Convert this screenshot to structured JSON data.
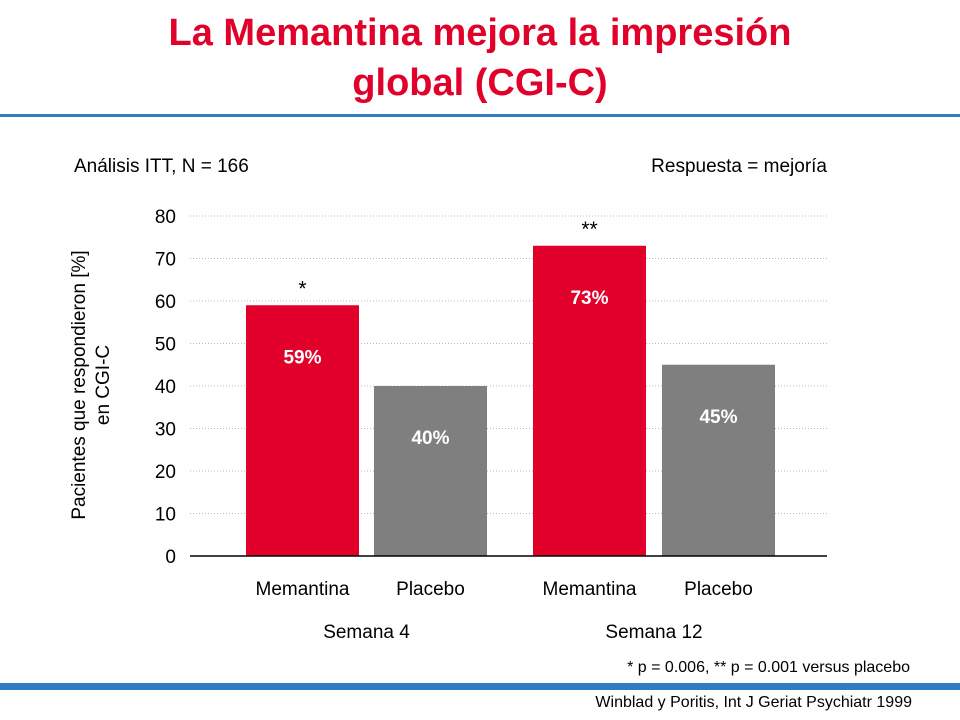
{
  "slide": {
    "title_line1": "La Memantina mejora la impresión",
    "title_line2": "global (CGI-C)",
    "subtitle_left": "Análisis ITT, N = 166",
    "subtitle_right": "Respuesta = mejoría",
    "footnote": "* p = 0.006, ** p = 0.001 versus placebo",
    "citation": "Winblad y Poritis, Int J Geriat Psychiatr 1999",
    "accent_color": "#e0002a",
    "rule_color": "#2f7ec1"
  },
  "chart_data": {
    "type": "bar",
    "ylabel_line1": "Pacientes que respondieron [%]",
    "ylabel_line2": "en CGI-C",
    "ylim": [
      0,
      80
    ],
    "yticks": [
      0,
      10,
      20,
      30,
      40,
      50,
      60,
      70,
      80
    ],
    "grid": true,
    "groups": [
      {
        "label": "Semana 4",
        "bars": [
          {
            "category": "Memantina",
            "value": 59,
            "label": "59%",
            "color": "#e0002a",
            "significance": "*"
          },
          {
            "category": "Placebo",
            "value": 40,
            "label": "40%",
            "color": "#7f7f7f",
            "significance": ""
          }
        ]
      },
      {
        "label": "Semana 12",
        "bars": [
          {
            "category": "Memantina",
            "value": 73,
            "label": "73%",
            "color": "#e0002a",
            "significance": "**"
          },
          {
            "category": "Placebo",
            "value": 45,
            "label": "45%",
            "color": "#7f7f7f",
            "significance": ""
          }
        ]
      }
    ]
  }
}
